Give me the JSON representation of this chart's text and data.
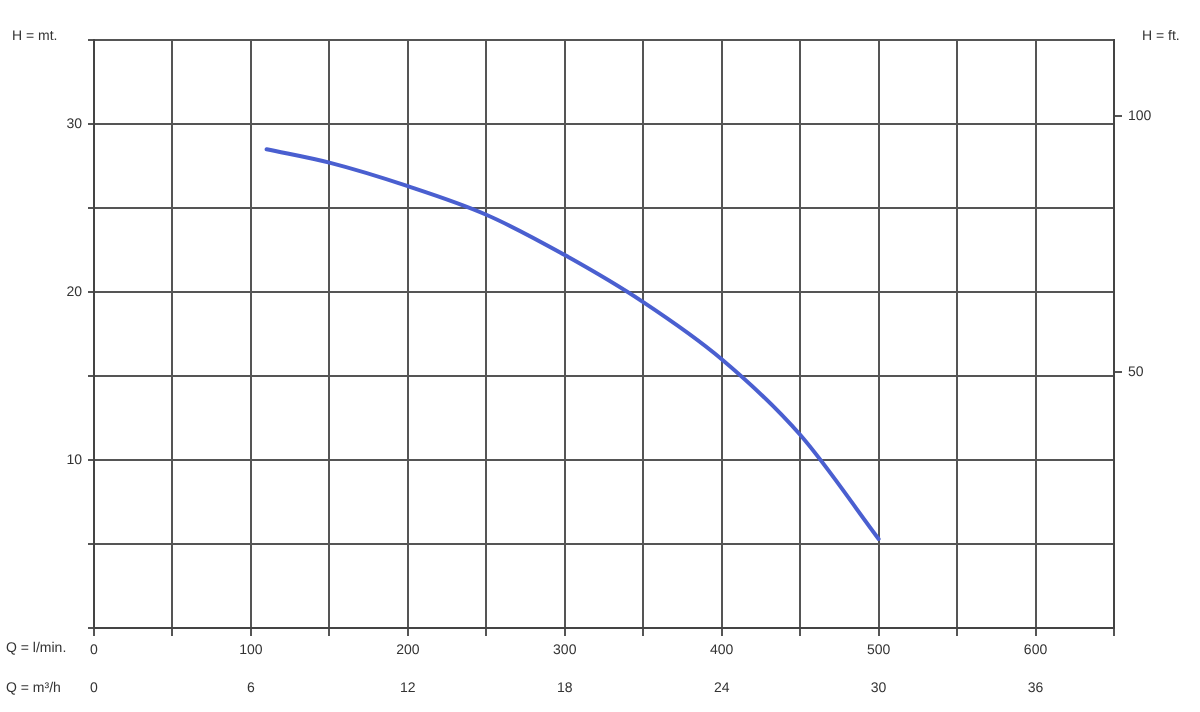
{
  "chart_data": {
    "type": "line",
    "xlabel": "Q = l/min.",
    "x2label": "Q = m³/h",
    "ylabel": "H = mt.",
    "y2label": "H = ft.",
    "x": [
      110,
      150,
      200,
      250,
      300,
      350,
      400,
      450,
      500
    ],
    "series": [
      {
        "color": "#4a5fd0",
        "values": [
          28.5,
          27.7,
          26.3,
          24.6,
          22.2,
          19.4,
          16,
          11.5,
          5.3
        ]
      }
    ],
    "xlim": [
      0,
      650
    ],
    "xticks": [
      0,
      {
        "value": 50,
        "label": null
      },
      100,
      {
        "value": 150,
        "label": null
      },
      200,
      {
        "value": 250,
        "label": null
      },
      300,
      {
        "value": 350,
        "label": null
      },
      400,
      {
        "value": 450,
        "label": null
      },
      500,
      {
        "value": 550,
        "label": null
      },
      600,
      {
        "value": 650,
        "label": null
      }
    ],
    "x2lim": [
      0,
      39
    ],
    "x2ticks": [
      0,
      6,
      12,
      18,
      24,
      30,
      36
    ],
    "ylim": [
      0,
      35
    ],
    "yticks": [
      {
        "value": 0,
        "label": null
      },
      {
        "value": 5,
        "label": null
      },
      10,
      {
        "value": 15,
        "label": null
      },
      20,
      {
        "value": 25,
        "label": null
      },
      30,
      {
        "value": 35,
        "label": null
      }
    ],
    "y2lim": [
      0,
      114.8
    ],
    "y2ticks": [
      50,
      100
    ],
    "grid": true,
    "legend": false,
    "marker": "none",
    "line_style": "solid"
  }
}
